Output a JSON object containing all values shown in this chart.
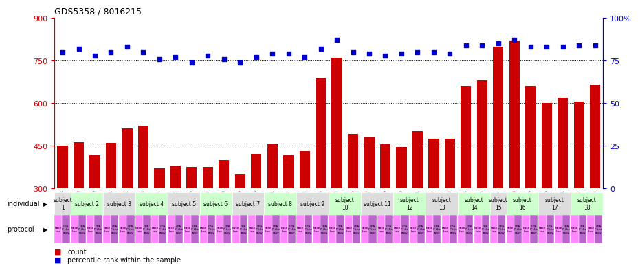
{
  "title": "GDS5358 / 8016215",
  "sample_ids": [
    "GSM1207208",
    "GSM1207209",
    "GSM1207210",
    "GSM1207211",
    "GSM1207212",
    "GSM1207213",
    "GSM1207214",
    "GSM1207215",
    "GSM1207216",
    "GSM1207217",
    "GSM1207218",
    "GSM1207219",
    "GSM1207220",
    "GSM1207221",
    "GSM1207222",
    "GSM1207223",
    "GSM1207224",
    "GSM1207225",
    "GSM1207226",
    "GSM1207227",
    "GSM1207229",
    "GSM1207230",
    "GSM1207231",
    "GSM1207232",
    "GSM1207233",
    "GSM1207234",
    "GSM1207235",
    "GSM1207237",
    "GSM1207238",
    "GSM1207239",
    "GSM1207240",
    "GSM1207241",
    "GSM1207242",
    "GSM1207243"
  ],
  "counts": [
    450,
    462,
    415,
    460,
    510,
    520,
    370,
    380,
    375,
    375,
    400,
    350,
    420,
    455,
    415,
    430,
    690,
    760,
    490,
    480,
    455,
    445,
    500,
    475,
    475,
    660,
    680,
    800,
    820,
    660,
    600,
    620,
    605,
    665
  ],
  "percentile_ranks": [
    80,
    82,
    78,
    80,
    83,
    80,
    76,
    77,
    74,
    78,
    76,
    74,
    77,
    79,
    79,
    77,
    82,
    87,
    80,
    79,
    78,
    79,
    80,
    80,
    79,
    84,
    84,
    85,
    87,
    83,
    83,
    83,
    84,
    84
  ],
  "bar_color": "#cc0000",
  "scatter_color": "#0000cc",
  "ylim_left": [
    300,
    900
  ],
  "ylim_right": [
    0,
    100
  ],
  "yticks_left": [
    300,
    450,
    600,
    750,
    900
  ],
  "yticks_right": [
    0,
    25,
    50,
    75,
    100
  ],
  "subjects": [
    {
      "label": "subject\n1",
      "start": 0,
      "end": 1,
      "color": "#dddddd"
    },
    {
      "label": "subject 2",
      "start": 1,
      "end": 3,
      "color": "#ccffcc"
    },
    {
      "label": "subject 3",
      "start": 3,
      "end": 5,
      "color": "#dddddd"
    },
    {
      "label": "subject 4",
      "start": 5,
      "end": 7,
      "color": "#ccffcc"
    },
    {
      "label": "subject 5",
      "start": 7,
      "end": 9,
      "color": "#dddddd"
    },
    {
      "label": "subject 6",
      "start": 9,
      "end": 11,
      "color": "#ccffcc"
    },
    {
      "label": "subject 7",
      "start": 11,
      "end": 13,
      "color": "#dddddd"
    },
    {
      "label": "subject 8",
      "start": 13,
      "end": 15,
      "color": "#ccffcc"
    },
    {
      "label": "subject 9",
      "start": 15,
      "end": 17,
      "color": "#dddddd"
    },
    {
      "label": "subject\n10",
      "start": 17,
      "end": 19,
      "color": "#ccffcc"
    },
    {
      "label": "subject 11",
      "start": 19,
      "end": 21,
      "color": "#dddddd"
    },
    {
      "label": "subject\n12",
      "start": 21,
      "end": 23,
      "color": "#ccffcc"
    },
    {
      "label": "subject\n13",
      "start": 23,
      "end": 25,
      "color": "#dddddd"
    },
    {
      "label": "subject\n14",
      "start": 25,
      "end": 27,
      "color": "#ccffcc"
    },
    {
      "label": "subject\n15",
      "start": 27,
      "end": 28,
      "color": "#dddddd"
    },
    {
      "label": "subject\n16",
      "start": 28,
      "end": 30,
      "color": "#ccffcc"
    },
    {
      "label": "subject\n17",
      "start": 30,
      "end": 32,
      "color": "#dddddd"
    },
    {
      "label": "subject\n18",
      "start": 32,
      "end": 34,
      "color": "#ccffcc"
    }
  ],
  "bar_color_hex": "#cc0000",
  "scatter_color_hex": "#0000cc",
  "xtick_bg": "#d0d0d0",
  "individual_label": "individual",
  "protocol_label": "protocol",
  "legend_count_label": "count",
  "legend_pct_label": "percentile rank within the sample",
  "proto_pink": "#ff88ff",
  "proto_purple": "#bb66cc"
}
